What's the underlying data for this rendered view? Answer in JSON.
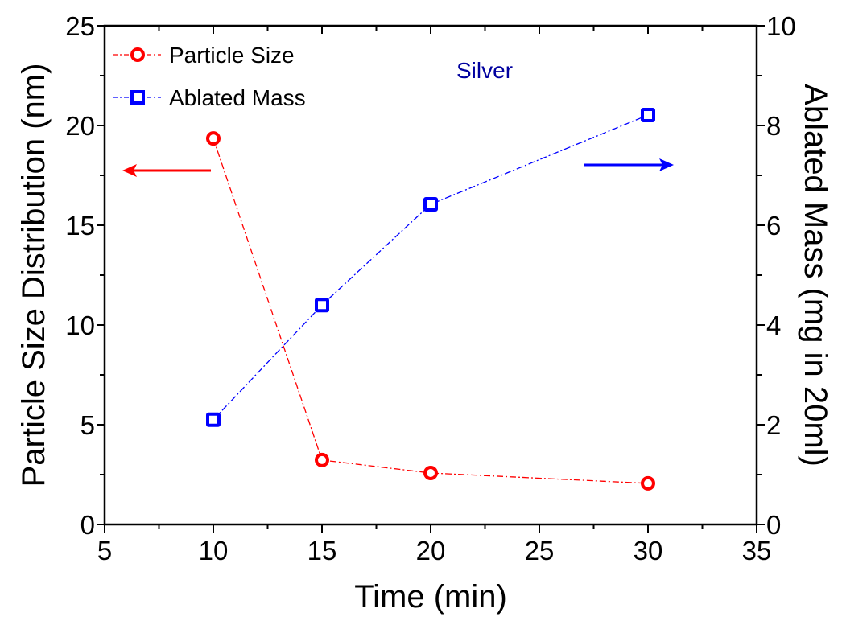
{
  "chart_data": {
    "type": "line",
    "title": "",
    "xlabel": "Time (min)",
    "ylabel": "Particle Size Distribution (nm)",
    "y2label": "Ablated Mass (mg in 20ml)",
    "xlim": [
      5,
      35
    ],
    "ylim": [
      0,
      25
    ],
    "y2lim": [
      0,
      10
    ],
    "x_ticks": [
      "5",
      "10",
      "15",
      "20",
      "25",
      "30",
      "35"
    ],
    "y_ticks": [
      "0",
      "5",
      "10",
      "15",
      "20",
      "25"
    ],
    "y2_ticks": [
      "0",
      "2",
      "4",
      "6",
      "8",
      "10"
    ],
    "grid": false,
    "legend_position": "top-left",
    "x": [
      10,
      15,
      20,
      30
    ],
    "series": [
      {
        "name": "Particle Size",
        "axis": "left",
        "marker": "circle-open",
        "line_style": "dash-dot",
        "color": "#ff0000",
        "values": [
          19.35,
          3.23,
          2.58,
          2.06
        ]
      },
      {
        "name": "Ablated Mass",
        "axis": "right",
        "marker": "square-open",
        "line_style": "dash-dot",
        "color": "#0000ff",
        "values": [
          2.1,
          4.4,
          6.42,
          8.21
        ]
      }
    ],
    "annotations": [
      {
        "text": "Silver",
        "color": "#00009f",
        "position": "top-center"
      },
      {
        "type": "arrow",
        "direction": "left",
        "color": "#ff0000",
        "meaning": "Particle Size uses left axis"
      },
      {
        "type": "arrow",
        "direction": "right",
        "color": "#0000ff",
        "meaning": "Ablated Mass uses right axis"
      }
    ]
  }
}
